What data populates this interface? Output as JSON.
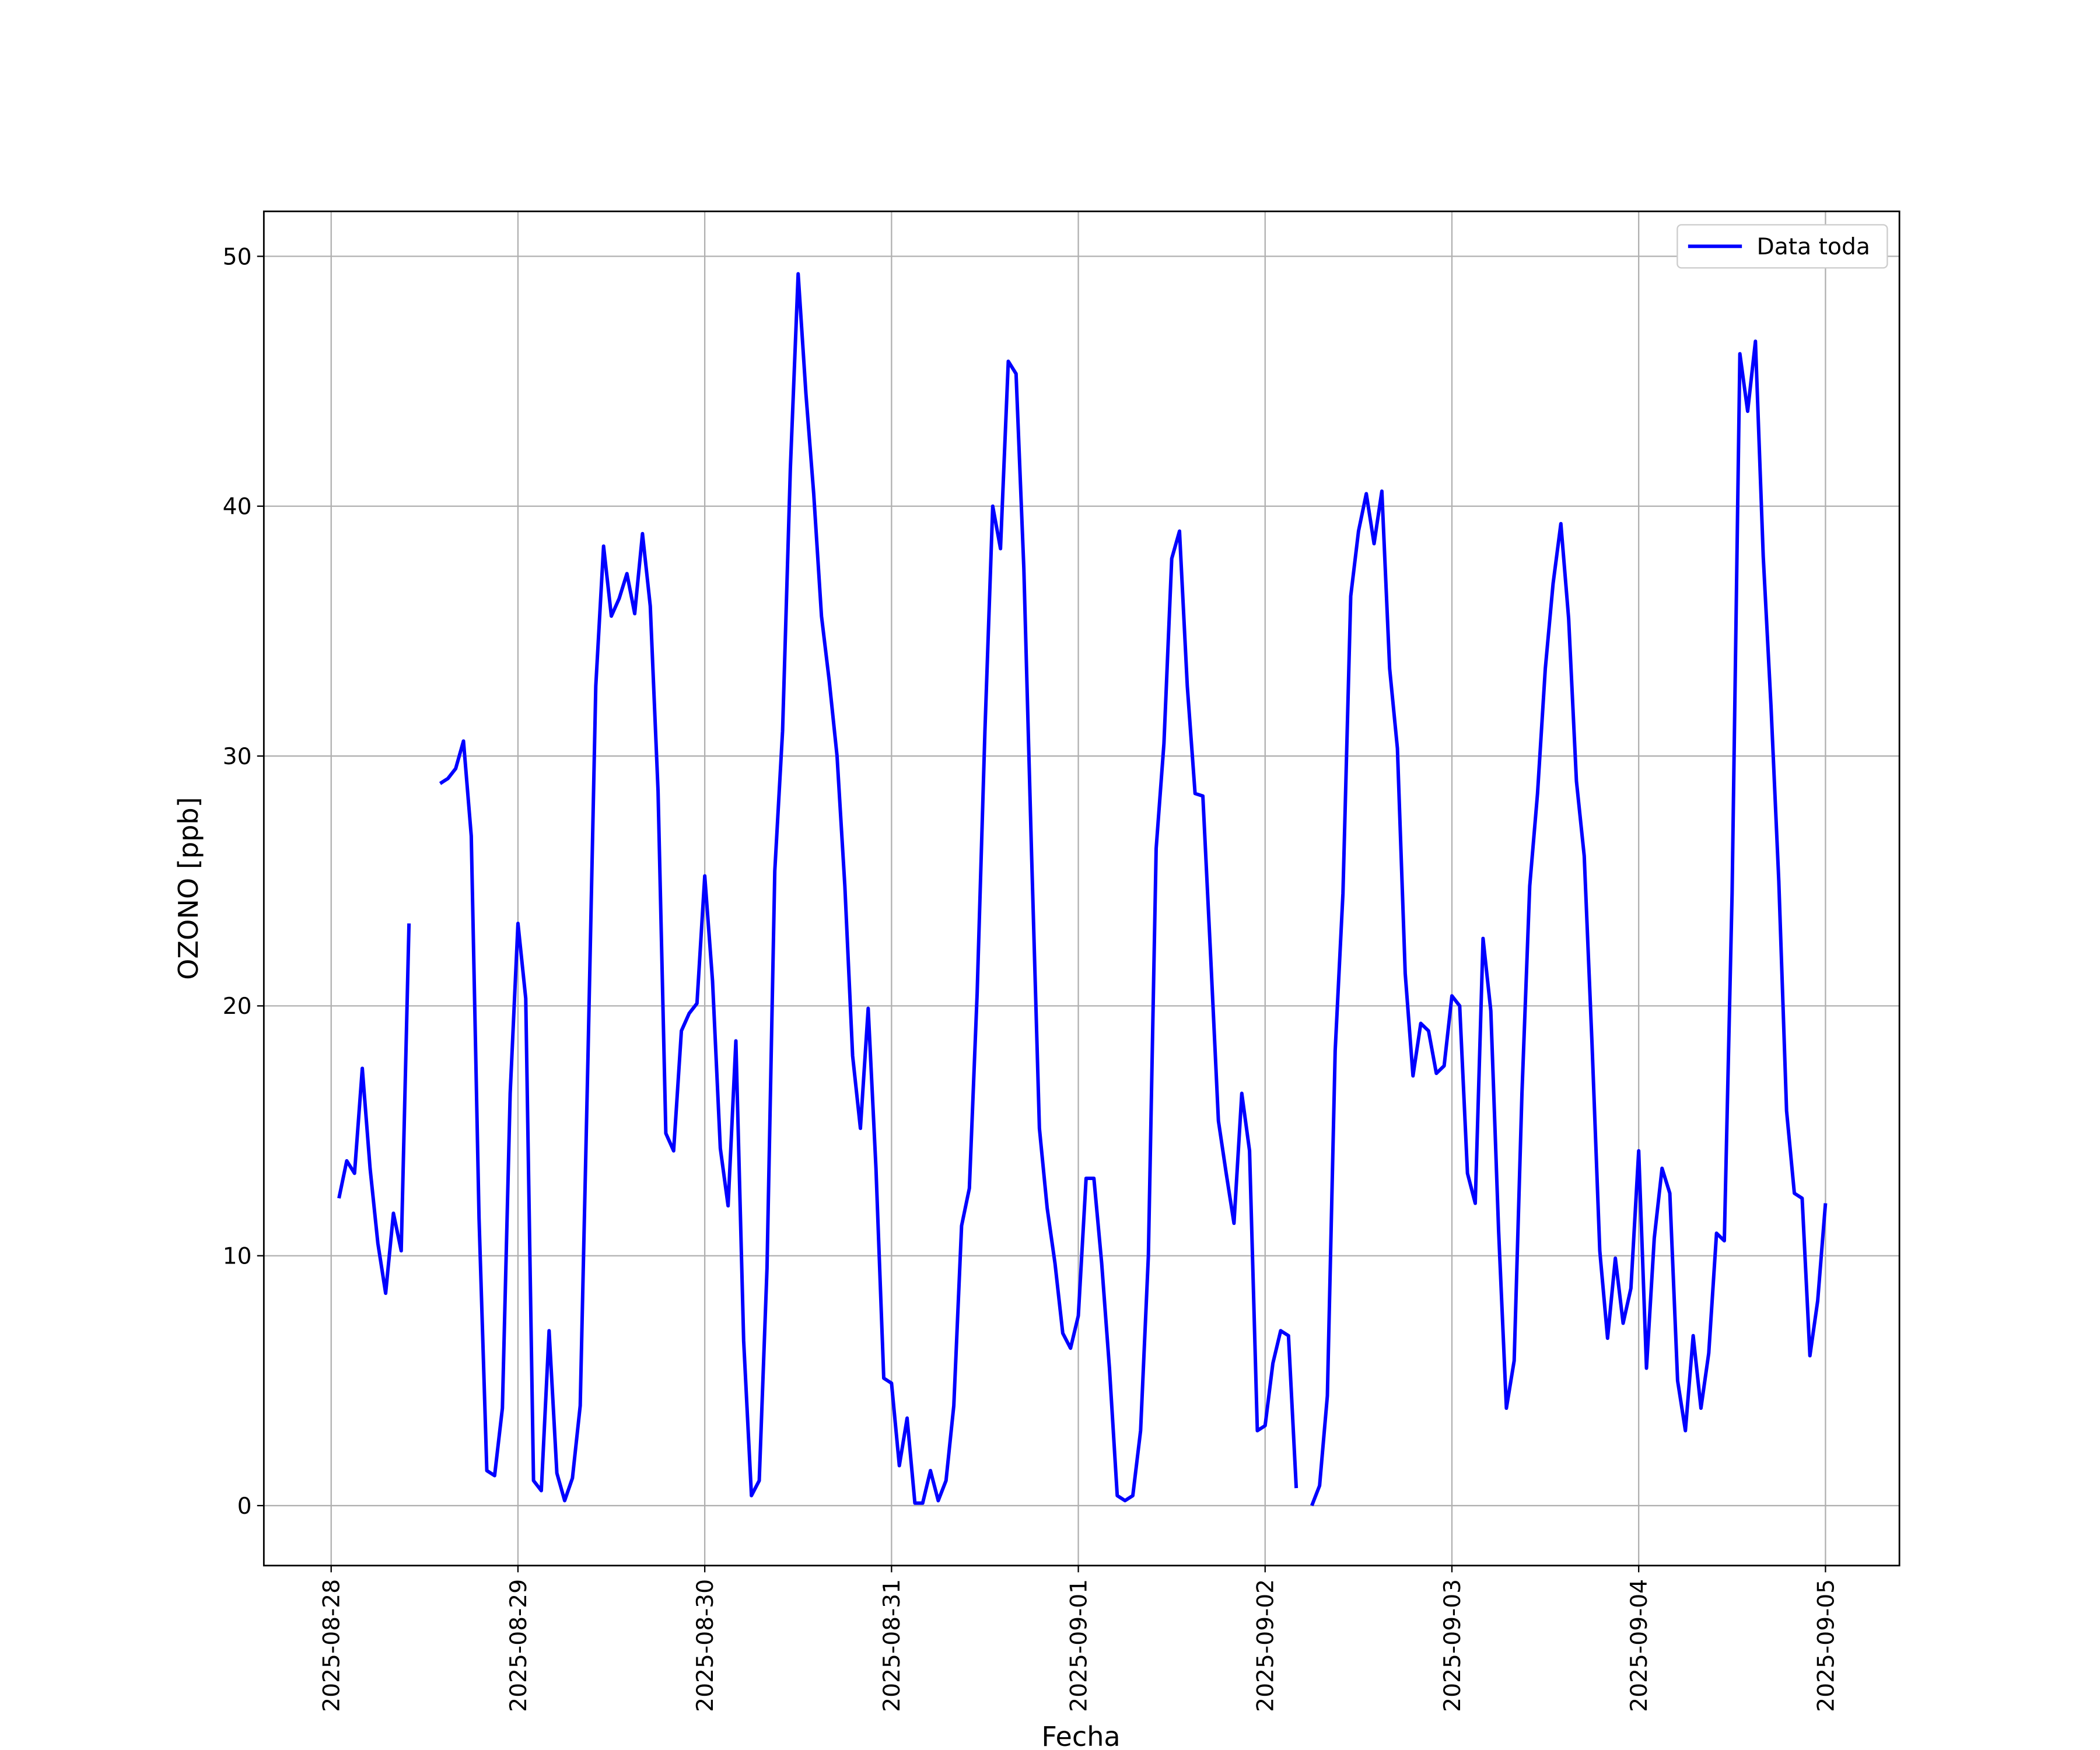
{
  "chart_data": {
    "type": "line",
    "xlabel": "Fecha",
    "ylabel": "OZONO [ppb]",
    "x": [
      "2025-08-28 01:00",
      "2025-08-28 02:00",
      "2025-08-28 03:00",
      "2025-08-28 04:00",
      "2025-08-28 05:00",
      "2025-08-28 06:00",
      "2025-08-28 07:00",
      "2025-08-28 08:00",
      "2025-08-28 09:00",
      "2025-08-28 10:00",
      "2025-08-28 11:00",
      "2025-08-28 12:00",
      "2025-08-28 13:00",
      "2025-08-28 14:00",
      "2025-08-28 15:00",
      "2025-08-28 16:00",
      "2025-08-28 17:00",
      "2025-08-28 18:00",
      "2025-08-28 19:00",
      "2025-08-28 20:00",
      "2025-08-28 21:00",
      "2025-08-28 22:00",
      "2025-08-28 23:00",
      "2025-08-29 00:00",
      "2025-08-29 01:00",
      "2025-08-29 02:00",
      "2025-08-29 03:00",
      "2025-08-29 04:00",
      "2025-08-29 05:00",
      "2025-08-29 06:00",
      "2025-08-29 07:00",
      "2025-08-29 08:00",
      "2025-08-29 09:00",
      "2025-08-29 10:00",
      "2025-08-29 11:00",
      "2025-08-29 12:00",
      "2025-08-29 13:00",
      "2025-08-29 14:00",
      "2025-08-29 15:00",
      "2025-08-29 16:00",
      "2025-08-29 17:00",
      "2025-08-29 18:00",
      "2025-08-29 19:00",
      "2025-08-29 20:00",
      "2025-08-29 21:00",
      "2025-08-29 22:00",
      "2025-08-29 23:00",
      "2025-08-30 00:00",
      "2025-08-30 01:00",
      "2025-08-30 02:00",
      "2025-08-30 03:00",
      "2025-08-30 04:00",
      "2025-08-30 05:00",
      "2025-08-30 06:00",
      "2025-08-30 07:00",
      "2025-08-30 08:00",
      "2025-08-30 09:00",
      "2025-08-30 10:00",
      "2025-08-30 11:00",
      "2025-08-30 12:00",
      "2025-08-30 13:00",
      "2025-08-30 14:00",
      "2025-08-30 15:00",
      "2025-08-30 16:00",
      "2025-08-30 17:00",
      "2025-08-30 18:00",
      "2025-08-30 19:00",
      "2025-08-30 20:00",
      "2025-08-30 21:00",
      "2025-08-30 22:00",
      "2025-08-30 23:00",
      "2025-08-31 00:00",
      "2025-08-31 01:00",
      "2025-08-31 02:00",
      "2025-08-31 03:00",
      "2025-08-31 04:00",
      "2025-08-31 05:00",
      "2025-08-31 06:00",
      "2025-08-31 07:00",
      "2025-08-31 08:00",
      "2025-08-31 09:00",
      "2025-08-31 10:00",
      "2025-08-31 11:00",
      "2025-08-31 12:00",
      "2025-08-31 13:00",
      "2025-08-31 14:00",
      "2025-08-31 15:00",
      "2025-08-31 16:00",
      "2025-08-31 17:00",
      "2025-08-31 18:00",
      "2025-08-31 19:00",
      "2025-08-31 20:00",
      "2025-08-31 21:00",
      "2025-08-31 22:00",
      "2025-08-31 23:00",
      "2025-09-01 00:00",
      "2025-09-01 01:00",
      "2025-09-01 02:00",
      "2025-09-01 03:00",
      "2025-09-01 04:00",
      "2025-09-01 05:00",
      "2025-09-01 06:00",
      "2025-09-01 07:00",
      "2025-09-01 08:00",
      "2025-09-01 09:00",
      "2025-09-01 10:00",
      "2025-09-01 11:00",
      "2025-09-01 12:00",
      "2025-09-01 13:00",
      "2025-09-01 14:00",
      "2025-09-01 15:00",
      "2025-09-01 16:00",
      "2025-09-01 17:00",
      "2025-09-01 18:00",
      "2025-09-01 19:00",
      "2025-09-01 20:00",
      "2025-09-01 21:00",
      "2025-09-01 22:00",
      "2025-09-01 23:00",
      "2025-09-02 00:00",
      "2025-09-02 01:00",
      "2025-09-02 02:00",
      "2025-09-02 03:00",
      "2025-09-02 04:00",
      "2025-09-02 05:00",
      "2025-09-02 06:00",
      "2025-09-02 07:00",
      "2025-09-02 08:00",
      "2025-09-02 09:00",
      "2025-09-02 10:00",
      "2025-09-02 11:00",
      "2025-09-02 12:00",
      "2025-09-02 13:00",
      "2025-09-02 14:00",
      "2025-09-02 15:00",
      "2025-09-02 16:00",
      "2025-09-02 17:00",
      "2025-09-02 18:00",
      "2025-09-02 19:00",
      "2025-09-02 20:00",
      "2025-09-02 21:00",
      "2025-09-02 22:00",
      "2025-09-02 23:00",
      "2025-09-03 00:00",
      "2025-09-03 01:00",
      "2025-09-03 02:00",
      "2025-09-03 03:00",
      "2025-09-03 04:00",
      "2025-09-03 05:00",
      "2025-09-03 06:00",
      "2025-09-03 07:00",
      "2025-09-03 08:00",
      "2025-09-03 09:00",
      "2025-09-03 10:00",
      "2025-09-03 11:00",
      "2025-09-03 12:00",
      "2025-09-03 13:00",
      "2025-09-03 14:00",
      "2025-09-03 15:00",
      "2025-09-03 16:00",
      "2025-09-03 17:00",
      "2025-09-03 18:00",
      "2025-09-03 19:00",
      "2025-09-03 20:00",
      "2025-09-03 21:00",
      "2025-09-03 22:00",
      "2025-09-03 23:00",
      "2025-09-04 00:00",
      "2025-09-04 01:00",
      "2025-09-04 02:00",
      "2025-09-04 03:00",
      "2025-09-04 04:00",
      "2025-09-04 05:00",
      "2025-09-04 06:00",
      "2025-09-04 07:00",
      "2025-09-04 08:00",
      "2025-09-04 09:00",
      "2025-09-04 10:00",
      "2025-09-04 11:00",
      "2025-09-04 12:00",
      "2025-09-04 13:00",
      "2025-09-04 14:00",
      "2025-09-04 15:00",
      "2025-09-04 16:00",
      "2025-09-04 17:00",
      "2025-09-04 18:00",
      "2025-09-04 19:00",
      "2025-09-04 20:00",
      "2025-09-04 21:00",
      "2025-09-04 22:00",
      "2025-09-04 23:00",
      "2025-09-05 00:00"
    ],
    "series": [
      {
        "name": "Data toda",
        "color": "#0000ff",
        "values": [
          12.3,
          13.8,
          13.3,
          17.5,
          13.5,
          10.5,
          8.5,
          11.7,
          10.2,
          23.3,
          null,
          null,
          null,
          28.9,
          29.1,
          29.5,
          30.6,
          26.8,
          11.5,
          1.4,
          1.2,
          3.9,
          16.5,
          23.3,
          20.3,
          1.0,
          0.6,
          7.0,
          1.3,
          0.2,
          1.1,
          4.0,
          18.0,
          32.8,
          38.4,
          35.6,
          36.3,
          37.3,
          35.7,
          38.9,
          36.0,
          28.6,
          14.9,
          14.2,
          19.0,
          19.7,
          20.1,
          25.2,
          21.0,
          14.3,
          12.0,
          18.6,
          6.6,
          0.4,
          1.0,
          9.5,
          25.4,
          31.0,
          41.5,
          49.3,
          44.5,
          40.5,
          35.6,
          33.0,
          30.0,
          24.8,
          18.0,
          15.1,
          19.9,
          13.5,
          5.1,
          4.9,
          1.6,
          3.5,
          0.1,
          0.1,
          1.4,
          0.2,
          1.0,
          4.0,
          11.2,
          12.7,
          20.5,
          31.0,
          40.0,
          38.3,
          45.8,
          45.3,
          37.5,
          26.0,
          15.1,
          11.9,
          9.7,
          6.9,
          6.3,
          7.6,
          13.1,
          13.1,
          9.7,
          5.5,
          0.4,
          0.2,
          0.4,
          3.0,
          10.0,
          26.3,
          30.5,
          37.9,
          39.0,
          32.8,
          28.5,
          28.4,
          22.0,
          15.4,
          13.3,
          11.3,
          16.5,
          14.2,
          3.0,
          3.2,
          5.7,
          7.0,
          6.8,
          0.7,
          null,
          0.0,
          0.8,
          4.4,
          18.2,
          24.5,
          36.4,
          39.0,
          40.5,
          38.5,
          40.6,
          33.5,
          30.3,
          21.3,
          17.2,
          19.3,
          19.0,
          17.3,
          17.6,
          20.4,
          20.0,
          13.3,
          12.1,
          22.7,
          19.8,
          11.0,
          3.9,
          5.8,
          16.5,
          24.8,
          28.5,
          33.5,
          36.9,
          39.3,
          35.5,
          29.0,
          26.0,
          18.5,
          10.2,
          6.7,
          9.9,
          7.3,
          8.7,
          14.2,
          5.5,
          10.7,
          13.5,
          12.5,
          5.0,
          3.0,
          6.8,
          3.9,
          6.1,
          10.9,
          10.6,
          24.5,
          46.1,
          43.8,
          46.6,
          38.0,
          32.0,
          25.0,
          15.8,
          12.5,
          12.3,
          6.0,
          8.2,
          12.1
        ]
      }
    ],
    "xlim": [
      "2025-08-27 15:21",
      "2025-09-05 09:30"
    ],
    "xticks": [
      "2025-08-28",
      "2025-08-29",
      "2025-08-30",
      "2025-08-31",
      "2025-09-01",
      "2025-09-02",
      "2025-09-03",
      "2025-09-04",
      "2025-09-05"
    ],
    "ylim": [
      -2.4,
      51.8
    ],
    "yticks": [
      0,
      10,
      20,
      30,
      40,
      50
    ],
    "grid": true,
    "legend": "upper right"
  }
}
